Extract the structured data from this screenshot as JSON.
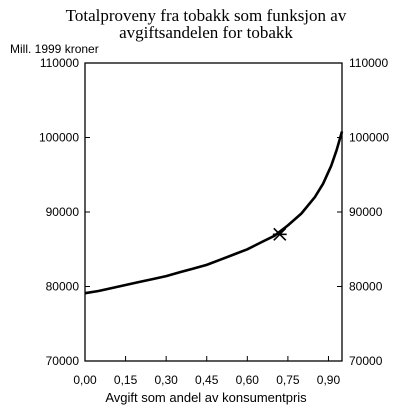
{
  "chart_data": {
    "type": "line",
    "title_lines": [
      "Totalproveny fra tobakk som funksjon av",
      "avgiftsandelen for tobakk"
    ],
    "ylabel": "Mill. 1999 kroner",
    "xlabel": "Avgift som andel av konsumentpris",
    "xlim": [
      0,
      0.95
    ],
    "ylim": [
      70000,
      110000
    ],
    "x_ticks": [
      "0,00",
      "0,15",
      "0,30",
      "0,45",
      "0,60",
      "0,75",
      "0,90"
    ],
    "y_ticks": [
      "70000",
      "80000",
      "90000",
      "100000",
      "110000"
    ],
    "grid": false,
    "series": [
      {
        "x": [
          0,
          0.05,
          0.1,
          0.15,
          0.2,
          0.25,
          0.3,
          0.35,
          0.4,
          0.45,
          0.5,
          0.55,
          0.6,
          0.65,
          0.7,
          0.75,
          0.8,
          0.85,
          0.88,
          0.91,
          0.93,
          0.95
        ],
        "y": [
          79100,
          79400,
          79800,
          80200,
          80600,
          81000,
          81400,
          81900,
          82400,
          82900,
          83600,
          84300,
          85000,
          85900,
          86800,
          88200,
          89800,
          92000,
          93800,
          96200,
          98300,
          100800
        ]
      }
    ],
    "marker": {
      "x": 0.72,
      "y": 87000,
      "symbol": "asterisk"
    }
  }
}
